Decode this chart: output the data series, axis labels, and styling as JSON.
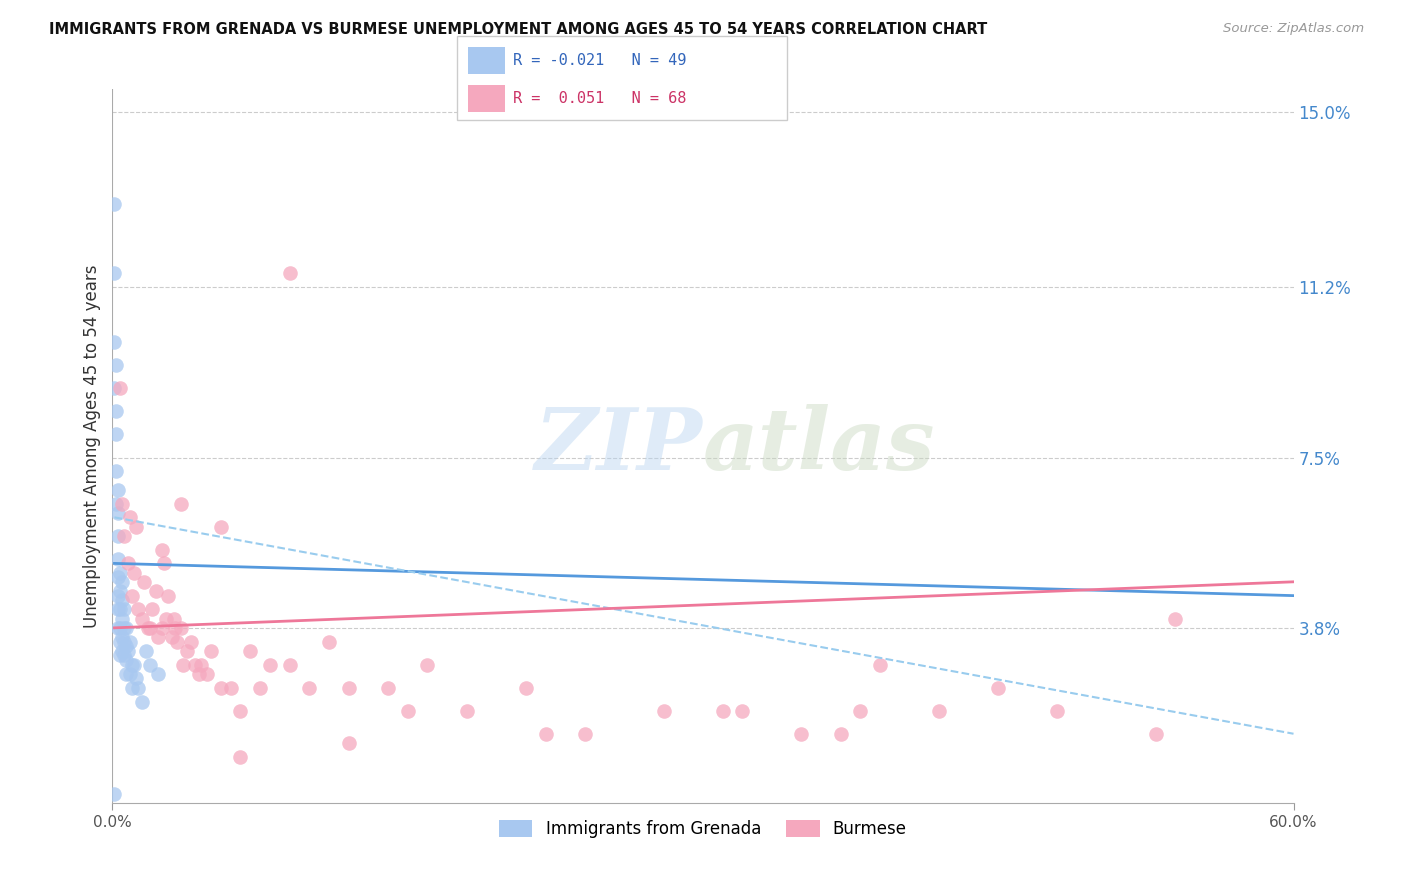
{
  "title": "IMMIGRANTS FROM GRENADA VS BURMESE UNEMPLOYMENT AMONG AGES 45 TO 54 YEARS CORRELATION CHART",
  "source": "Source: ZipAtlas.com",
  "ylabel": "Unemployment Among Ages 45 to 54 years",
  "x_min": 0.0,
  "x_max": 0.6,
  "y_min": 0.0,
  "y_max": 0.155,
  "x_tick_labels": [
    "0.0%",
    "60.0%"
  ],
  "y_tick_right": [
    0.15,
    0.112,
    0.075,
    0.038
  ],
  "y_tick_right_labels": [
    "15.0%",
    "11.2%",
    "7.5%",
    "3.8%"
  ],
  "color_blue": "#a8c8f0",
  "color_pink": "#f5a8be",
  "color_blue_line": "#5599dd",
  "color_pink_line": "#ee7799",
  "color_dashed": "#99ccee",
  "color_title": "#111111",
  "color_right_labels": "#4488cc",
  "color_source": "#999999",
  "watermark_zip": "ZIP",
  "watermark_atlas": "atlas",
  "legend_label1": "Immigrants from Grenada",
  "legend_label2": "Burmese",
  "legend_r1": "R = -0.021",
  "legend_n1": "N = 49",
  "legend_r2": "R =  0.051",
  "legend_n2": "N = 68",
  "blue_scatter_x": [
    0.001,
    0.001,
    0.001,
    0.001,
    0.002,
    0.002,
    0.002,
    0.002,
    0.002,
    0.003,
    0.003,
    0.003,
    0.003,
    0.003,
    0.003,
    0.003,
    0.003,
    0.004,
    0.004,
    0.004,
    0.004,
    0.004,
    0.004,
    0.005,
    0.005,
    0.005,
    0.005,
    0.005,
    0.006,
    0.006,
    0.006,
    0.006,
    0.007,
    0.007,
    0.007,
    0.007,
    0.008,
    0.009,
    0.009,
    0.01,
    0.01,
    0.011,
    0.012,
    0.013,
    0.015,
    0.017,
    0.019,
    0.023,
    0.001
  ],
  "blue_scatter_y": [
    0.13,
    0.115,
    0.1,
    0.09,
    0.095,
    0.085,
    0.08,
    0.072,
    0.065,
    0.068,
    0.063,
    0.058,
    0.053,
    0.049,
    0.045,
    0.042,
    0.038,
    0.05,
    0.046,
    0.042,
    0.038,
    0.035,
    0.032,
    0.048,
    0.044,
    0.04,
    0.036,
    0.033,
    0.042,
    0.038,
    0.035,
    0.032,
    0.038,
    0.034,
    0.031,
    0.028,
    0.033,
    0.035,
    0.028,
    0.03,
    0.025,
    0.03,
    0.027,
    0.025,
    0.022,
    0.033,
    0.03,
    0.028,
    0.002
  ],
  "pink_scatter_x": [
    0.004,
    0.005,
    0.006,
    0.008,
    0.009,
    0.01,
    0.011,
    0.012,
    0.013,
    0.015,
    0.016,
    0.018,
    0.019,
    0.02,
    0.022,
    0.023,
    0.025,
    0.026,
    0.027,
    0.028,
    0.03,
    0.031,
    0.032,
    0.033,
    0.035,
    0.036,
    0.038,
    0.04,
    0.042,
    0.044,
    0.045,
    0.048,
    0.05,
    0.055,
    0.06,
    0.065,
    0.07,
    0.075,
    0.08,
    0.09,
    0.1,
    0.11,
    0.12,
    0.14,
    0.16,
    0.18,
    0.21,
    0.24,
    0.28,
    0.32,
    0.37,
    0.38,
    0.39,
    0.42,
    0.45,
    0.48,
    0.53,
    0.065,
    0.15,
    0.22,
    0.31,
    0.35,
    0.12,
    0.09,
    0.055,
    0.035,
    0.025,
    0.54
  ],
  "pink_scatter_y": [
    0.09,
    0.065,
    0.058,
    0.052,
    0.062,
    0.045,
    0.05,
    0.06,
    0.042,
    0.04,
    0.048,
    0.038,
    0.038,
    0.042,
    0.046,
    0.036,
    0.038,
    0.052,
    0.04,
    0.045,
    0.036,
    0.04,
    0.038,
    0.035,
    0.038,
    0.03,
    0.033,
    0.035,
    0.03,
    0.028,
    0.03,
    0.028,
    0.033,
    0.025,
    0.025,
    0.02,
    0.033,
    0.025,
    0.03,
    0.03,
    0.025,
    0.035,
    0.025,
    0.025,
    0.03,
    0.02,
    0.025,
    0.015,
    0.02,
    0.02,
    0.015,
    0.02,
    0.03,
    0.02,
    0.025,
    0.02,
    0.015,
    0.01,
    0.02,
    0.015,
    0.02,
    0.015,
    0.013,
    0.115,
    0.06,
    0.065,
    0.055,
    0.04
  ],
  "blue_line_x": [
    0.001,
    0.6
  ],
  "blue_line_y": [
    0.052,
    0.045
  ],
  "dashed_line_x": [
    0.001,
    0.6
  ],
  "dashed_line_y": [
    0.062,
    0.015
  ],
  "pink_line_x": [
    0.001,
    0.6
  ],
  "pink_line_y": [
    0.038,
    0.048
  ]
}
